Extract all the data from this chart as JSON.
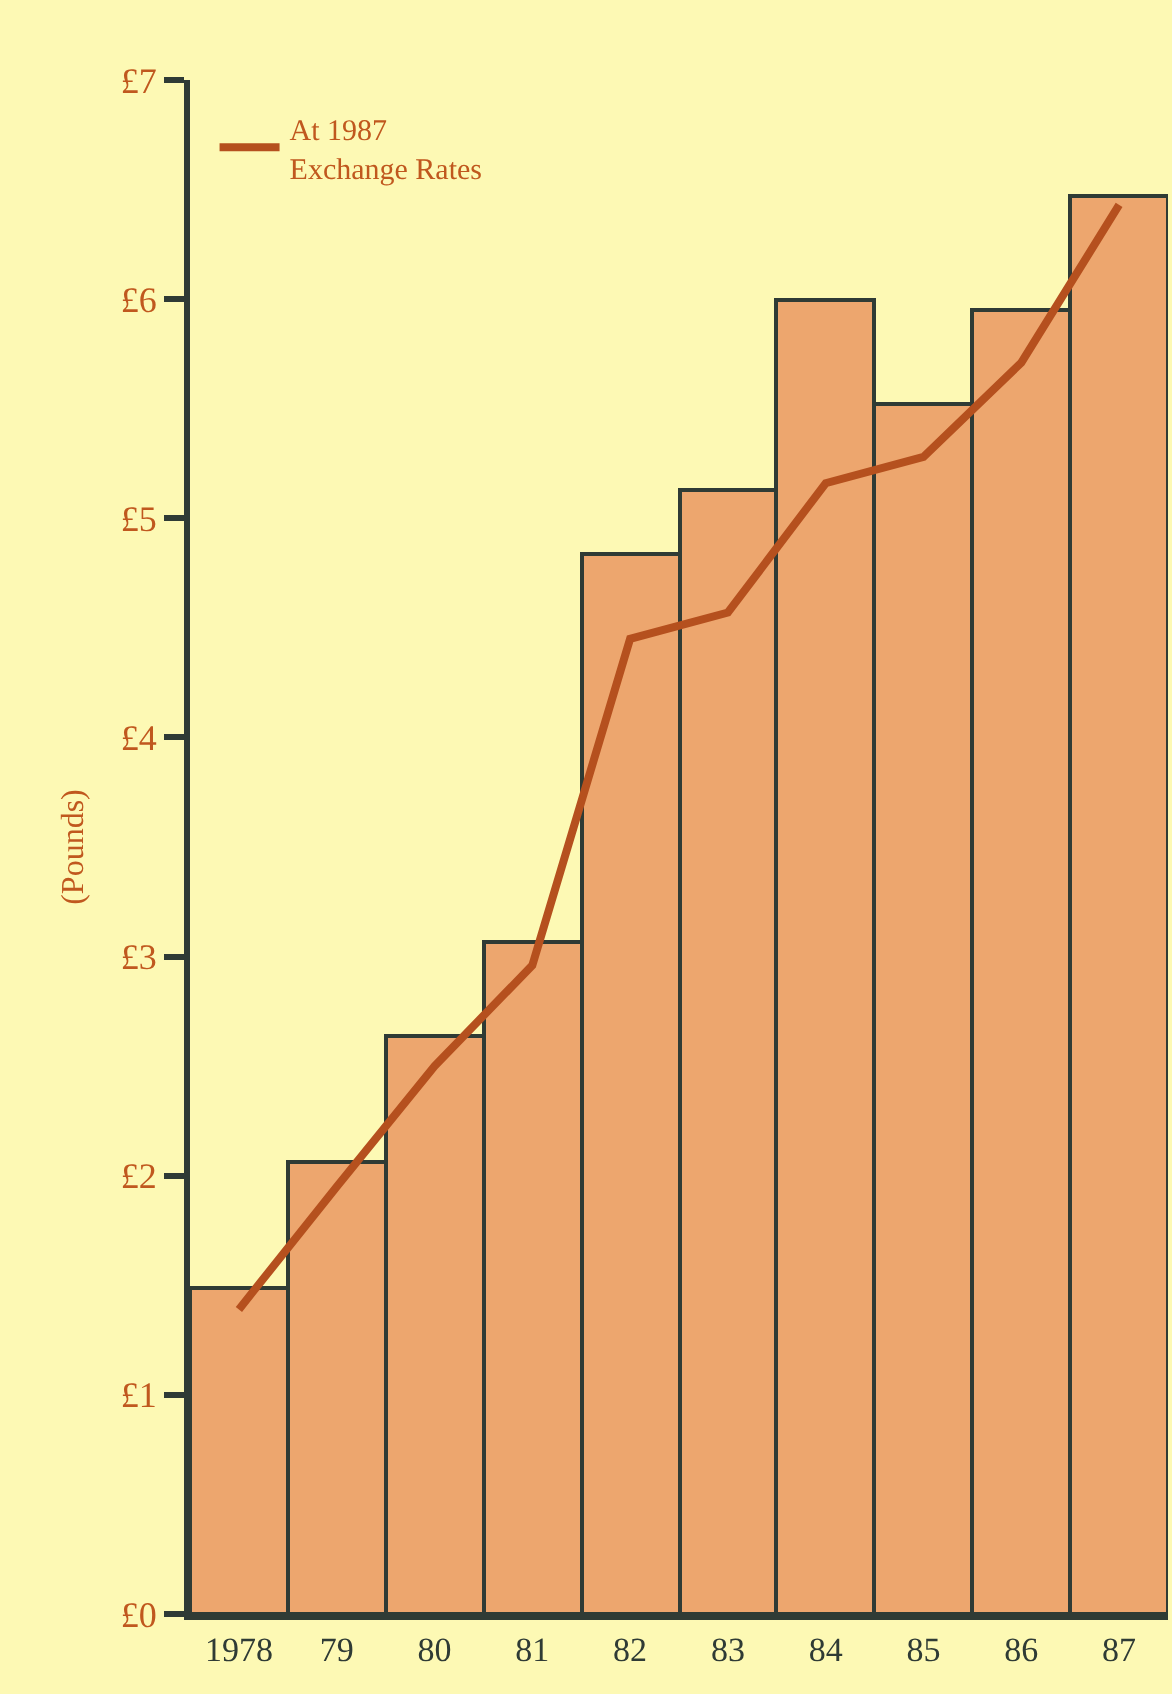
{
  "chart_data": {
    "type": "bar",
    "ylabel": "(Pounds)",
    "categories": [
      "1978",
      "79",
      "80",
      "81",
      "82",
      "83",
      "84",
      "85",
      "86",
      "87"
    ],
    "series": [
      {
        "color": "#eda66e",
        "values": [
          1.49,
          2.06,
          2.64,
          3.07,
          4.84,
          5.13,
          6.0,
          5.52,
          5.95,
          6.47
        ]
      },
      {
        "type": "line",
        "name": "At 1987\nExchange Rates",
        "color": "#b5501e",
        "values": [
          1.39,
          1.95,
          2.5,
          2.96,
          4.45,
          4.57,
          5.16,
          5.28,
          5.71,
          6.43
        ]
      }
    ],
    "ylim": [
      0,
      7
    ],
    "yticks": [
      {
        "value": 0,
        "label": "£0"
      },
      {
        "value": 1,
        "label": "£1"
      },
      {
        "value": 2,
        "label": "£2"
      },
      {
        "value": 3,
        "label": "£3"
      },
      {
        "value": 4,
        "label": "£4"
      },
      {
        "value": 5,
        "label": "£5"
      },
      {
        "value": 6,
        "label": "£6"
      },
      {
        "value": 7,
        "label": "£7"
      }
    ],
    "legend": "top left",
    "grid": false
  }
}
